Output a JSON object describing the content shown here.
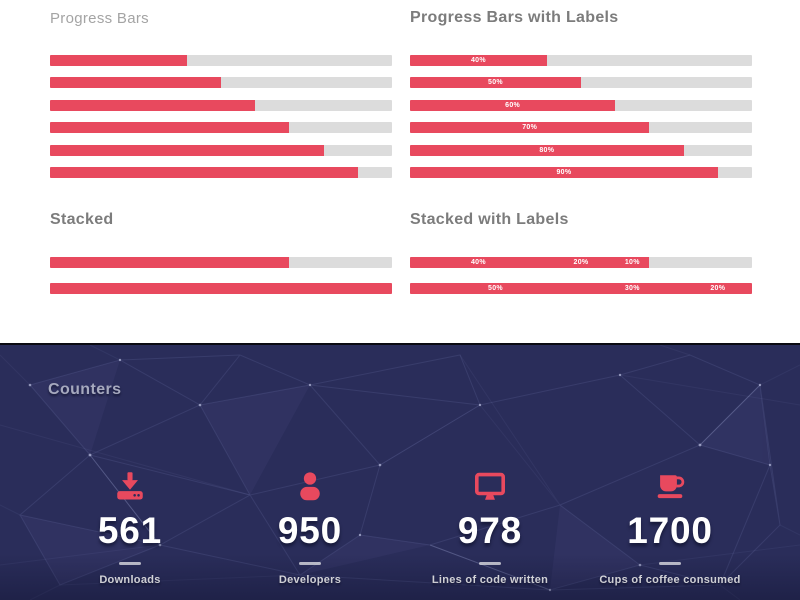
{
  "colors": {
    "accent": "#e8495e",
    "track": "#dcdcdc",
    "counters_background": "#2a2d5a"
  },
  "sections": {
    "progress_bars": {
      "title": "Progress Bars",
      "bars": [
        {
          "value": 40
        },
        {
          "value": 50
        },
        {
          "value": 60
        },
        {
          "value": 70
        },
        {
          "value": 80
        },
        {
          "value": 90
        }
      ]
    },
    "progress_bars_with_labels": {
      "title": "Progress Bars with Labels",
      "bars": [
        {
          "label": "40%",
          "value": 40
        },
        {
          "label": "50%",
          "value": 50
        },
        {
          "label": "60%",
          "value": 60
        },
        {
          "label": "70%",
          "value": 70
        },
        {
          "label": "80%",
          "value": 80
        },
        {
          "label": "90%",
          "value": 90
        }
      ]
    },
    "stacked": {
      "title": "Stacked",
      "bars": [
        {
          "value": 70
        },
        {
          "value": 100
        }
      ]
    },
    "stacked_with_labels": {
      "title": "Stacked with Labels",
      "bars": [
        {
          "segments": [
            {
              "label": "40%",
              "value": 40
            },
            {
              "label": "20%",
              "value": 20
            },
            {
              "label": "10%",
              "value": 10
            }
          ]
        },
        {
          "segments": [
            {
              "label": "50%",
              "value": 50
            },
            {
              "label": "30%",
              "value": 30
            },
            {
              "label": "20%",
              "value": 20
            }
          ]
        }
      ]
    }
  },
  "counters": {
    "title": "Counters",
    "items": [
      {
        "icon": "download-icon",
        "value": "561",
        "label": "Downloads"
      },
      {
        "icon": "user-icon",
        "value": "950",
        "label": "Developers"
      },
      {
        "icon": "monitor-icon",
        "value": "978",
        "label": "Lines of code written"
      },
      {
        "icon": "coffee-icon",
        "value": "1700",
        "label": "Cups of coffee consumed"
      }
    ]
  }
}
